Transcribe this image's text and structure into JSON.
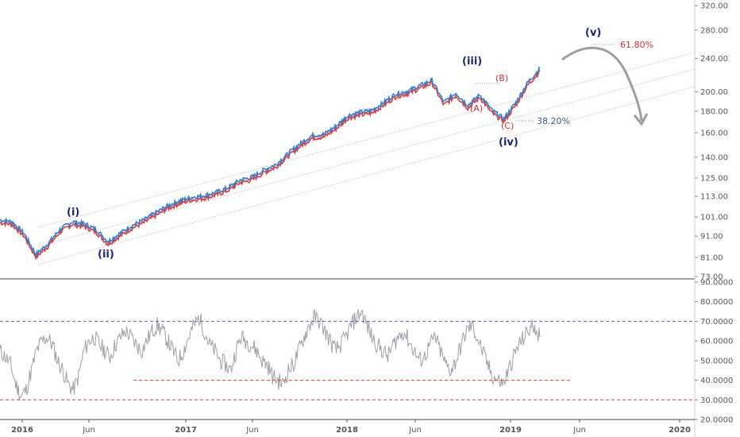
{
  "colors": {
    "price_blue": "#2f7fd8",
    "price_red": "#e53935",
    "rsi_line": "#9e9ea6",
    "channel": "#b0b0b0",
    "wave_main": "#1a237e",
    "wave_sub": "#d32f2f",
    "arrow": "#9e9e9e",
    "rsi_upper_line": "#4a6aa8",
    "rsi_lower_line": "#e53935",
    "axis": "#555555"
  },
  "chart_data": [
    {
      "type": "line",
      "panel": "price",
      "scale": "log",
      "xlabel": "",
      "ylabel": "",
      "x_ticks": [
        "2016",
        "Jun",
        "2017",
        "Jun",
        "2018",
        "Jun",
        "2019",
        "Jun",
        "2020"
      ],
      "y_ticks": [
        "73.00",
        "81.00",
        "91.00",
        "101.00",
        "113.00",
        "125.00",
        "140.00",
        "160.00",
        "180.00",
        "200.00",
        "240.00",
        "280.00",
        "320.00"
      ],
      "ylim": [
        73,
        330
      ],
      "x_range": [
        "2015-11",
        "2020-03"
      ],
      "series": [
        {
          "x": [
            "2015-11",
            "2015-12",
            "2016-01",
            "2016-01b",
            "2016-02",
            "2016-03",
            "2016-04",
            "2016-05",
            "2016-06",
            "2016-07",
            "2016-08",
            "2016-09",
            "2016-10",
            "2016-11",
            "2016-12",
            "2017-01",
            "2017-02",
            "2017-03",
            "2017-04",
            "2017-05",
            "2017-06",
            "2017-07",
            "2017-08",
            "2017-09",
            "2017-10",
            "2017-11",
            "2017-12",
            "2018-01",
            "2018-02",
            "2018-03",
            "2018-04",
            "2018-05",
            "2018-06",
            "2018-07",
            "2018-08",
            "2018-09",
            "2018-10",
            "2018-10b",
            "2018-11",
            "2018-11b",
            "2018-12",
            "2018-12b",
            "2019-01",
            "2019-02",
            "2019-03",
            "2019-04"
          ],
          "values": [
            99,
            98,
            92,
            82,
            87,
            94,
            98,
            97,
            94,
            88,
            92,
            96,
            99,
            103,
            107,
            110,
            112,
            113,
            115,
            118,
            123,
            125,
            130,
            134,
            142,
            150,
            157,
            158,
            165,
            175,
            178,
            180,
            188,
            197,
            200,
            206,
            212,
            188,
            198,
            185,
            196,
            180,
            172,
            188,
            210,
            226
          ]
        }
      ]
    },
    {
      "type": "line",
      "panel": "rsi",
      "y_ticks": [
        "20.0000",
        "30.0000",
        "40.0000",
        "50.0000",
        "60.0000",
        "70.0000",
        "80.0000",
        "90.0000"
      ],
      "ylim": [
        20,
        90
      ],
      "reference_lines": [
        70,
        40,
        30
      ],
      "series": [
        {
          "values": [
            55,
            52,
            48,
            38,
            32,
            35,
            45,
            55,
            60,
            62,
            58,
            50,
            45,
            38,
            35,
            42,
            55,
            60,
            62,
            58,
            55,
            52,
            58,
            62,
            65,
            62,
            58,
            55,
            60,
            65,
            68,
            65,
            60,
            55,
            50,
            55,
            62,
            68,
            72,
            65,
            58,
            55,
            50,
            48,
            45,
            55,
            62,
            60,
            58,
            55,
            50,
            48,
            42,
            40,
            38,
            45,
            48,
            55,
            62,
            68,
            72,
            70,
            65,
            60,
            55,
            58,
            62,
            68,
            72,
            75,
            68,
            62,
            58,
            55,
            52,
            58,
            62,
            65,
            60,
            55,
            50,
            52,
            58,
            62,
            55,
            48,
            45,
            50,
            58,
            65,
            68,
            62,
            55,
            48,
            42,
            40,
            38,
            45,
            52,
            58,
            62,
            66,
            68,
            62
          ]
        }
      ]
    }
  ],
  "annotations": {
    "waves": [
      {
        "label": "(i)",
        "kind": "main"
      },
      {
        "label": "(ii)",
        "kind": "main"
      },
      {
        "label": "(iii)",
        "kind": "main"
      },
      {
        "label": "(iv)",
        "kind": "main"
      },
      {
        "label": "(v)",
        "kind": "main"
      },
      {
        "label": "(A)",
        "kind": "sub"
      },
      {
        "label": "(B)",
        "kind": "sub"
      },
      {
        "label": "(C)",
        "kind": "sub"
      }
    ],
    "fib_upper": "61.80%",
    "fib_lower": "38.20%"
  }
}
